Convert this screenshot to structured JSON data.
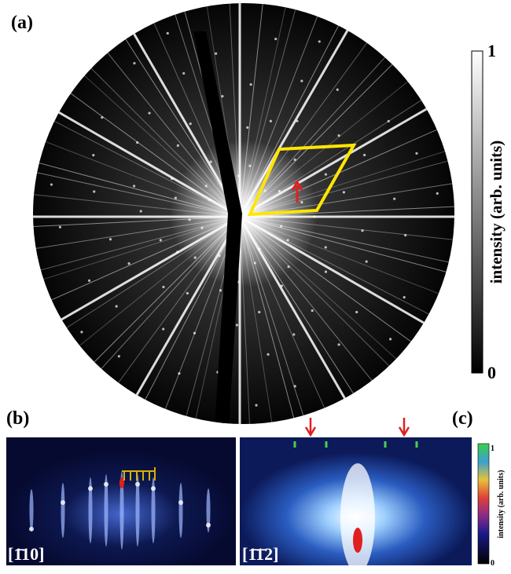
{
  "panels": [
    {
      "label": "(a)",
      "colorbar": {
        "max": 1,
        "min": 0,
        "title": "intensity (arb. units)"
      }
    },
    {
      "label": "(b)",
      "zone_axis": "[1̄10]"
    },
    {
      "label": "(c)",
      "zone_axis": "[1̄1̄2]",
      "colorbar": {
        "max": 1,
        "min": 0,
        "title": "intensity (arb. units)"
      }
    }
  ]
}
